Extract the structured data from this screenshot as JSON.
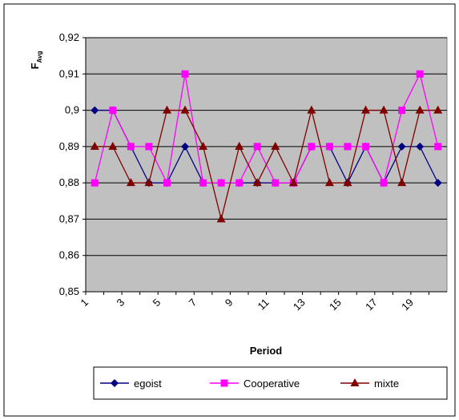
{
  "chart_data": {
    "type": "line",
    "ylabel": "F",
    "ylabel_sub": "Avg",
    "xlabel": "Period",
    "categories": [
      "1",
      null,
      "3",
      null,
      "5",
      null,
      "7",
      null,
      "9",
      null,
      "11",
      null,
      "13",
      null,
      "15",
      null,
      "17",
      null,
      "19",
      null
    ],
    "series": [
      {
        "name": "egoist",
        "color": "#000080",
        "marker": "diamond",
        "values": [
          0.9,
          0.9,
          0.89,
          0.88,
          0.88,
          0.89,
          0.88,
          0.88,
          0.88,
          0.88,
          0.88,
          0.88,
          0.89,
          0.89,
          0.88,
          0.89,
          0.88,
          0.89,
          0.89,
          0.88
        ]
      },
      {
        "name": "Cooperative",
        "color": "#ff00ff",
        "marker": "square",
        "values": [
          0.88,
          0.9,
          0.89,
          0.89,
          0.88,
          0.91,
          0.88,
          0.88,
          0.88,
          0.89,
          0.88,
          0.88,
          0.89,
          0.89,
          0.89,
          0.89,
          0.88,
          0.9,
          0.91,
          0.89
        ]
      },
      {
        "name": "mixte",
        "color": "#800000",
        "marker": "triangle",
        "values": [
          0.89,
          0.89,
          0.88,
          0.88,
          0.9,
          0.9,
          0.89,
          0.87,
          0.89,
          0.88,
          0.89,
          0.88,
          0.9,
          0.88,
          0.88,
          0.9,
          0.9,
          0.88,
          0.9,
          0.9
        ]
      }
    ],
    "ylim": [
      0.85,
      0.92
    ],
    "yticks": [
      {
        "value": 0.85,
        "label": "0,85"
      },
      {
        "value": 0.86,
        "label": "0,86"
      },
      {
        "value": 0.87,
        "label": "0,87"
      },
      {
        "value": 0.88,
        "label": "0,88"
      },
      {
        "value": 0.89,
        "label": "0,89"
      },
      {
        "value": 0.9,
        "label": "0,9"
      },
      {
        "value": 0.91,
        "label": "0,91"
      },
      {
        "value": 0.92,
        "label": "0,92"
      }
    ],
    "grid": true,
    "legend": "bottom"
  }
}
